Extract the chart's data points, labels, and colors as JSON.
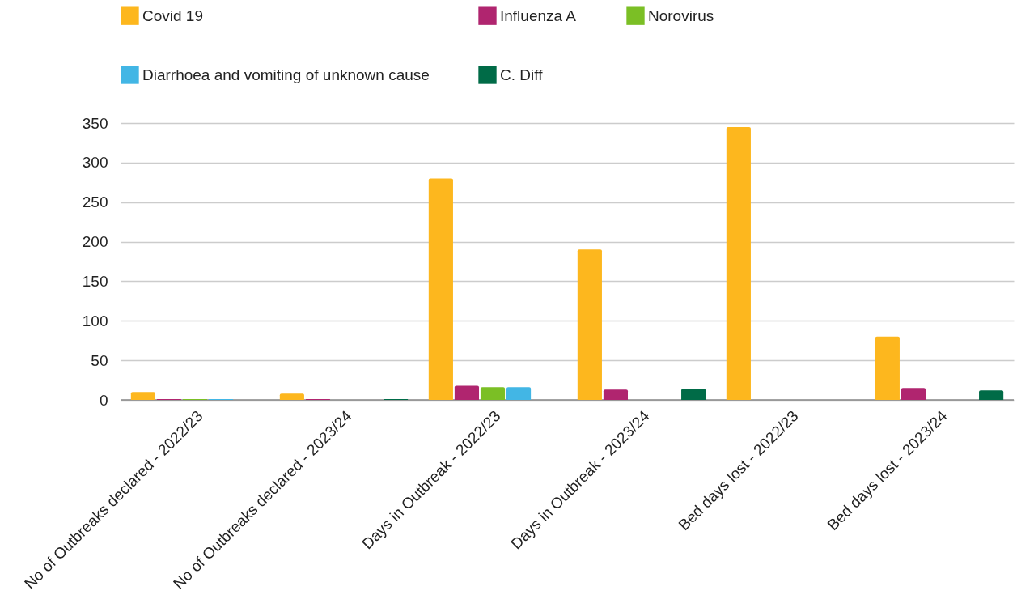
{
  "chart_data": {
    "type": "bar",
    "categories": [
      "No of Outbreaks declared - 2022/23",
      "No of Outbreaks declared - 2023/24",
      "Days in Outbreak - 2022/23",
      "Days in Outbreak - 2023/24",
      "Bed days lost - 2022/23",
      "Bed days lost - 2023/24"
    ],
    "series": [
      {
        "name": "Covid 19",
        "color": "#fdb71e",
        "values": [
          10,
          8,
          280,
          190,
          345,
          80
        ]
      },
      {
        "name": "Influenza A",
        "color": "#b0256f",
        "values": [
          1,
          1,
          18,
          13,
          0,
          15
        ]
      },
      {
        "name": "Norovirus",
        "color": "#7bbf25",
        "values": [
          1,
          0,
          16,
          0,
          0,
          0
        ]
      },
      {
        "name": "Diarrhoea and vomiting of unknown cause",
        "color": "#42b6e5",
        "values": [
          1,
          0,
          16,
          0,
          0,
          0
        ]
      },
      {
        "name": "C. Diff",
        "color": "#006b47",
        "values": [
          0,
          1,
          0,
          14,
          0,
          12
        ]
      }
    ],
    "ylim": [
      0,
      350
    ],
    "yticks": [
      0,
      50,
      100,
      150,
      200,
      250,
      300,
      350
    ],
    "grid": "y",
    "legend": "top"
  }
}
